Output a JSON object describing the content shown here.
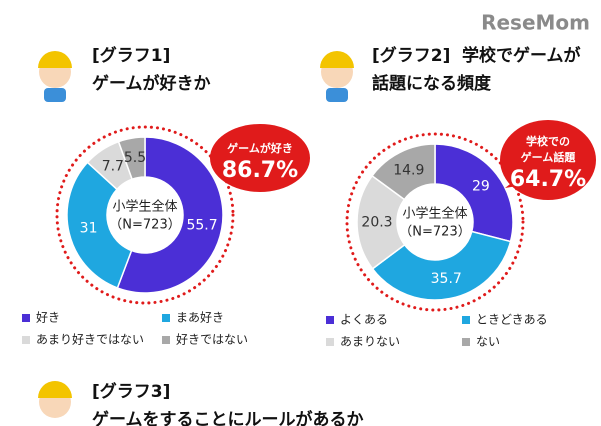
{
  "logo": "ReseMom",
  "chart_data": [
    {
      "type": "donut",
      "title_tag": "[グラフ1]",
      "title_lines": [
        "ゲームが好きか"
      ],
      "center_label": [
        "小学生全体",
        "（N=723）"
      ],
      "annotation": [
        "ゲームが好き",
        "86.7%"
      ],
      "categories": [
        "好き",
        "まあ好き",
        "あまり好きではない",
        "好きではない"
      ],
      "values": [
        55.7,
        31.0,
        7.7,
        5.5
      ],
      "colors": [
        "#4b2fd6",
        "#1fa7e0",
        "#dadada",
        "#a8a8a8"
      ]
    },
    {
      "type": "donut",
      "title_tag": "[グラフ2]",
      "title_lines": [
        "学校でゲームが",
        "話題になる頻度"
      ],
      "center_label": [
        "小学生全体",
        "（N=723）"
      ],
      "annotation": [
        "学校での",
        "ゲーム話題",
        "64.7%"
      ],
      "categories": [
        "よくある",
        "ときどきある",
        "あまりない",
        "ない"
      ],
      "values": [
        29.0,
        35.7,
        20.3,
        14.9
      ],
      "colors": [
        "#4b2fd6",
        "#1fa7e0",
        "#dadada",
        "#a8a8a8"
      ]
    }
  ],
  "next_section": {
    "title_tag": "[グラフ3]",
    "title": "ゲームをすることにルールがあるか"
  }
}
